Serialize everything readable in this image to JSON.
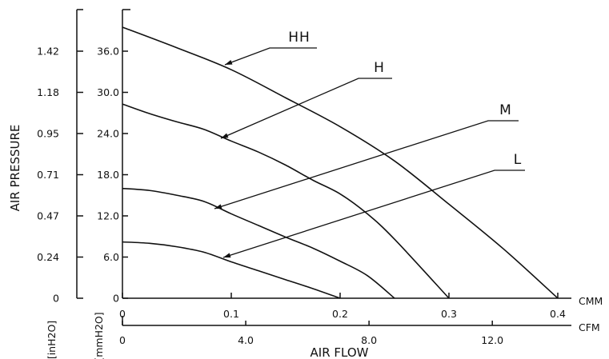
{
  "chart_data": {
    "type": "line",
    "xlabel": "AIR FLOW",
    "ylabel": "AIR PRESSURE",
    "x_units": {
      "primary": "CMM",
      "secondary": "CFM"
    },
    "y_units": {
      "inner": "[mmH2O]",
      "outer": "[inH2O]"
    },
    "x_ticks_cmm": [
      "0",
      "0.1",
      "0.2",
      "0.3",
      "0.4"
    ],
    "x_ticks_cfm": [
      "0",
      "4.0",
      "8.0",
      "12.0"
    ],
    "x_ticks_cfm_values": [
      0,
      4.0,
      8.0,
      12.0
    ],
    "y_ticks_mm": [
      "0",
      "6.0",
      "12.0",
      "18.0",
      "24.0",
      "30.0",
      "36.0"
    ],
    "y_ticks_in": [
      "0",
      "0.24",
      "0.47",
      "0.71",
      "0.95",
      "1.18",
      "1.42"
    ],
    "xlim": [
      0,
      0.4
    ],
    "ylim": [
      0,
      42
    ],
    "cfm_per_cmm": 35.31,
    "grid": false,
    "series": [
      {
        "name": "HH",
        "x": [
          0,
          0.05,
          0.1,
          0.15,
          0.2,
          0.25,
          0.3,
          0.35,
          0.4
        ],
        "y": [
          39.5,
          36.5,
          33.3,
          29.2,
          25.0,
          20.0,
          13.7,
          7.2,
          0
        ]
      },
      {
        "name": "H",
        "x": [
          0,
          0.025,
          0.05,
          0.075,
          0.1,
          0.125,
          0.15,
          0.175,
          0.2,
          0.225,
          0.25,
          0.3
        ],
        "y": [
          28.3,
          26.9,
          25.7,
          24.6,
          22.9,
          21.3,
          19.4,
          17.2,
          15.2,
          12.3,
          8.6,
          0
        ]
      },
      {
        "name": "M",
        "x": [
          0,
          0.025,
          0.05,
          0.075,
          0.1,
          0.125,
          0.15,
          0.175,
          0.2,
          0.225,
          0.25
        ],
        "y": [
          16.0,
          15.7,
          15.0,
          14.1,
          12.3,
          10.6,
          8.9,
          7.3,
          5.4,
          3.3,
          0
        ]
      },
      {
        "name": "L",
        "x": [
          0,
          0.025,
          0.05,
          0.075,
          0.1,
          0.125,
          0.15,
          0.175,
          0.2
        ],
        "y": [
          8.2,
          8.0,
          7.5,
          6.7,
          5.3,
          4.0,
          2.7,
          1.4,
          0
        ]
      }
    ]
  }
}
